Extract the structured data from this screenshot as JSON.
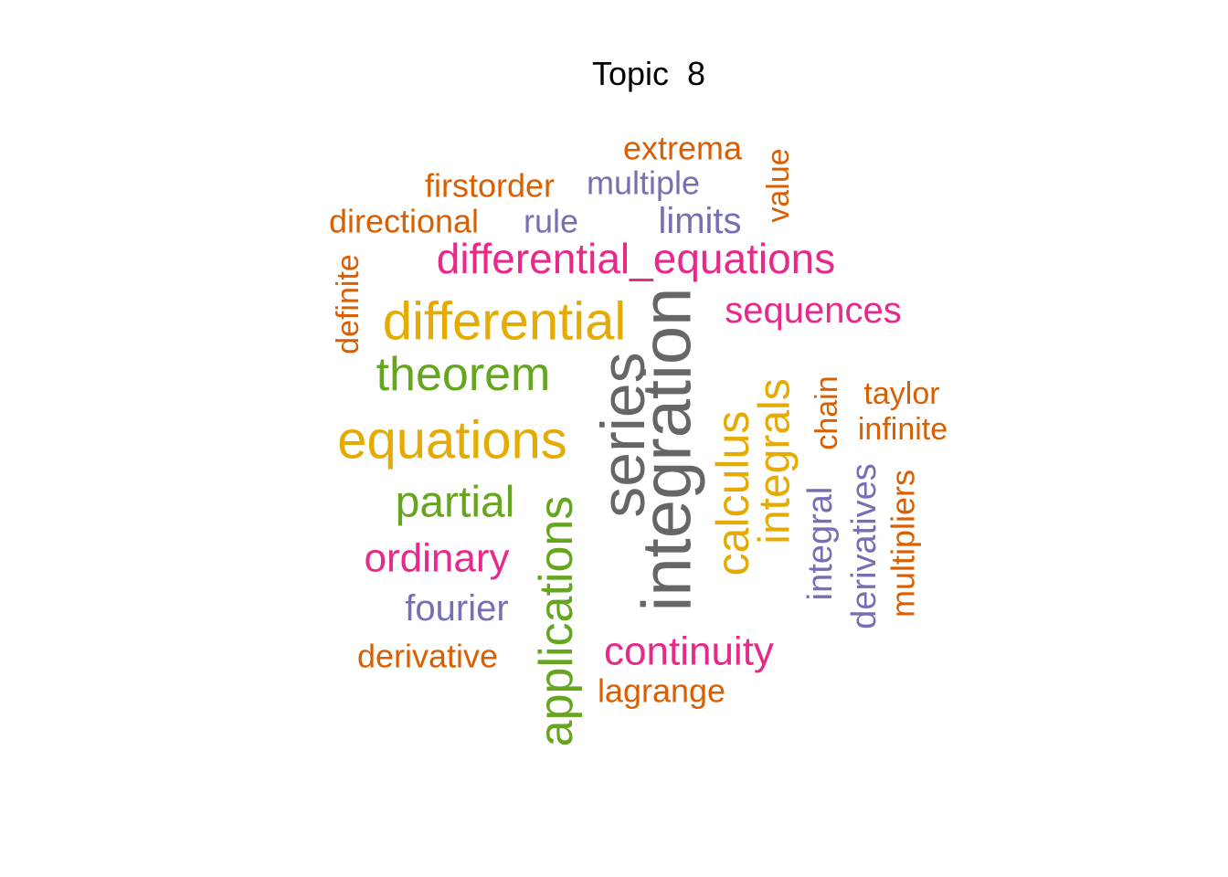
{
  "title": "Topic  8",
  "colors": {
    "gray": "#666666",
    "green": "#66a61e",
    "gold": "#e6ab02",
    "pink": "#e7298a",
    "purple": "#7570b3",
    "orange": "#d95f02"
  },
  "chart_data": {
    "type": "wordcloud",
    "title": "Topic  8",
    "words": [
      {
        "word": "integration",
        "color": "gray",
        "rotated": true
      },
      {
        "word": "series",
        "color": "gray",
        "rotated": true
      },
      {
        "word": "equations",
        "color": "gold",
        "rotated": false
      },
      {
        "word": "differential",
        "color": "gold",
        "rotated": false
      },
      {
        "word": "calculus",
        "color": "gold",
        "rotated": true
      },
      {
        "word": "integrals",
        "color": "gold",
        "rotated": true
      },
      {
        "word": "applications",
        "color": "green",
        "rotated": true
      },
      {
        "word": "theorem",
        "color": "green",
        "rotated": false
      },
      {
        "word": "partial",
        "color": "green",
        "rotated": false
      },
      {
        "word": "differential_equations",
        "color": "pink",
        "rotated": false
      },
      {
        "word": "ordinary",
        "color": "pink",
        "rotated": false
      },
      {
        "word": "continuity",
        "color": "pink",
        "rotated": false
      },
      {
        "word": "sequences",
        "color": "pink",
        "rotated": false
      },
      {
        "word": "fourier",
        "color": "purple",
        "rotated": false
      },
      {
        "word": "multiple",
        "color": "purple",
        "rotated": false
      },
      {
        "word": "limits",
        "color": "purple",
        "rotated": false
      },
      {
        "word": "rule",
        "color": "purple",
        "rotated": false
      },
      {
        "word": "integral",
        "color": "purple",
        "rotated": true
      },
      {
        "word": "derivatives",
        "color": "purple",
        "rotated": true
      },
      {
        "word": "derivative",
        "color": "orange",
        "rotated": false
      },
      {
        "word": "lagrange",
        "color": "orange",
        "rotated": false
      },
      {
        "word": "directional",
        "color": "orange",
        "rotated": false
      },
      {
        "word": "firstorder",
        "color": "orange",
        "rotated": false
      },
      {
        "word": "extrema",
        "color": "orange",
        "rotated": false
      },
      {
        "word": "value",
        "color": "orange",
        "rotated": true
      },
      {
        "word": "definite",
        "color": "orange",
        "rotated": true
      },
      {
        "word": "taylor",
        "color": "orange",
        "rotated": false
      },
      {
        "word": "infinite",
        "color": "orange",
        "rotated": false
      },
      {
        "word": "chain",
        "color": "orange",
        "rotated": true
      },
      {
        "word": "multipliers",
        "color": "orange",
        "rotated": true
      }
    ]
  }
}
